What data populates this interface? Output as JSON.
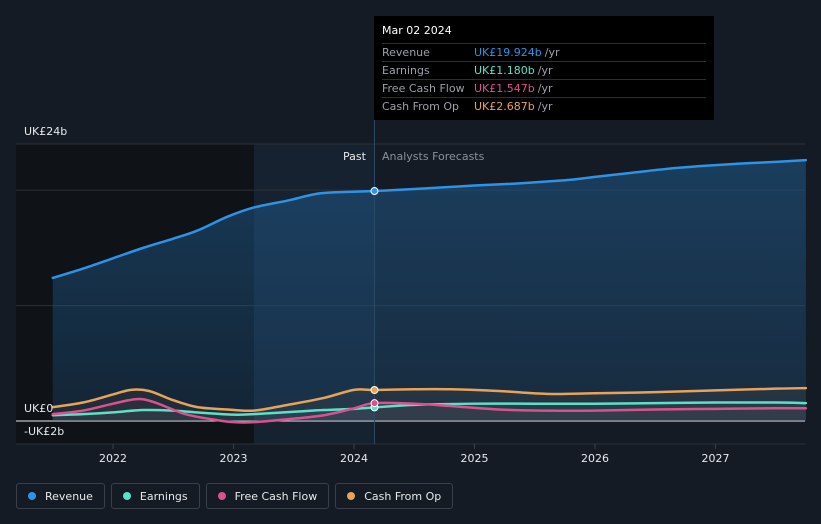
{
  "chart_data": {
    "type": "line",
    "title": "",
    "y_axis": {
      "top_label": "UK£24b",
      "zero_label": "UK£0",
      "bottom_label": "-UK£2b",
      "ylim": [
        -2,
        24
      ]
    },
    "x_axis": {
      "ticks": [
        "2022",
        "2023",
        "2024",
        "2025",
        "2026",
        "2027"
      ],
      "xlim": [
        2021.5,
        2027.75
      ]
    },
    "regions": {
      "past_label": "Past",
      "forecast_label": "Analysts Forecasts",
      "divider_x": 2024.17,
      "highlight_start": 2023.17
    },
    "series": [
      {
        "name": "Revenue",
        "color": "#2e93e6",
        "filled": true,
        "x": [
          2021.5,
          2021.75,
          2022.0,
          2022.25,
          2022.5,
          2022.7,
          2022.95,
          2023.17,
          2023.45,
          2023.7,
          2023.95,
          2024.17,
          2024.5,
          2024.75,
          2025.0,
          2025.3,
          2025.6,
          2025.8,
          2026.0,
          2026.3,
          2026.6,
          2026.9,
          2027.2,
          2027.5,
          2027.75
        ],
        "values": [
          12.4,
          13.2,
          14.1,
          15.0,
          15.8,
          16.5,
          17.7,
          18.5,
          19.1,
          19.7,
          19.85,
          19.924,
          20.1,
          20.25,
          20.4,
          20.55,
          20.75,
          20.9,
          21.15,
          21.5,
          21.85,
          22.1,
          22.3,
          22.45,
          22.6
        ]
      },
      {
        "name": "Earnings",
        "color": "#5ee0c8",
        "filled": false,
        "x": [
          2021.5,
          2021.75,
          2022.0,
          2022.25,
          2022.5,
          2022.75,
          2023.0,
          2023.17,
          2023.5,
          2023.75,
          2024.0,
          2024.17,
          2024.5,
          2025.0,
          2025.5,
          2026.0,
          2026.5,
          2027.0,
          2027.5,
          2027.75
        ],
        "values": [
          0.5,
          0.6,
          0.75,
          0.95,
          0.9,
          0.7,
          0.55,
          0.6,
          0.8,
          0.95,
          1.05,
          1.18,
          1.4,
          1.5,
          1.5,
          1.5,
          1.55,
          1.6,
          1.6,
          1.55
        ]
      },
      {
        "name": "Free Cash Flow",
        "color": "#d9528f",
        "filled": false,
        "x": [
          2021.5,
          2021.75,
          2022.0,
          2022.2,
          2022.35,
          2022.6,
          2022.85,
          2023.0,
          2023.17,
          2023.45,
          2023.75,
          2024.0,
          2024.17,
          2024.5,
          2024.8,
          2025.2,
          2025.6,
          2026.0,
          2026.5,
          2027.0,
          2027.5,
          2027.75
        ],
        "values": [
          0.6,
          0.9,
          1.5,
          1.9,
          1.6,
          0.6,
          0.1,
          -0.1,
          -0.1,
          0.15,
          0.5,
          1.1,
          1.547,
          1.5,
          1.3,
          1.0,
          0.9,
          0.9,
          1.0,
          1.05,
          1.1,
          1.1
        ]
      },
      {
        "name": "Cash From Op",
        "color": "#e6a35a",
        "filled": false,
        "x": [
          2021.5,
          2021.75,
          2022.0,
          2022.15,
          2022.3,
          2022.5,
          2022.7,
          2022.95,
          2023.17,
          2023.45,
          2023.75,
          2024.0,
          2024.17,
          2024.5,
          2024.8,
          2025.2,
          2025.6,
          2026.0,
          2026.5,
          2027.0,
          2027.5,
          2027.75
        ],
        "values": [
          1.2,
          1.6,
          2.3,
          2.7,
          2.6,
          1.8,
          1.2,
          1.0,
          0.9,
          1.4,
          2.0,
          2.7,
          2.687,
          2.75,
          2.75,
          2.6,
          2.35,
          2.4,
          2.5,
          2.65,
          2.8,
          2.85
        ]
      }
    ],
    "tooltip": {
      "date": "Mar 02 2024",
      "rows": [
        {
          "label": "Revenue",
          "value": "UK£19.924b",
          "unit": "/yr",
          "color": "#2e93e6"
        },
        {
          "label": "Earnings",
          "value": "UK£1.180b",
          "unit": "/yr",
          "color": "#5ee0c8"
        },
        {
          "label": "Free Cash Flow",
          "value": "UK£1.547b",
          "unit": "/yr",
          "color": "#d9528f"
        },
        {
          "label": "Cash From Op",
          "value": "UK£2.687b",
          "unit": "/yr",
          "color": "#e6a35a"
        }
      ]
    },
    "legend": [
      {
        "name": "Revenue",
        "color": "#2e93e6"
      },
      {
        "name": "Earnings",
        "color": "#5ee0c8"
      },
      {
        "name": "Free Cash Flow",
        "color": "#d9528f"
      },
      {
        "name": "Cash From Op",
        "color": "#e6a35a"
      }
    ]
  }
}
